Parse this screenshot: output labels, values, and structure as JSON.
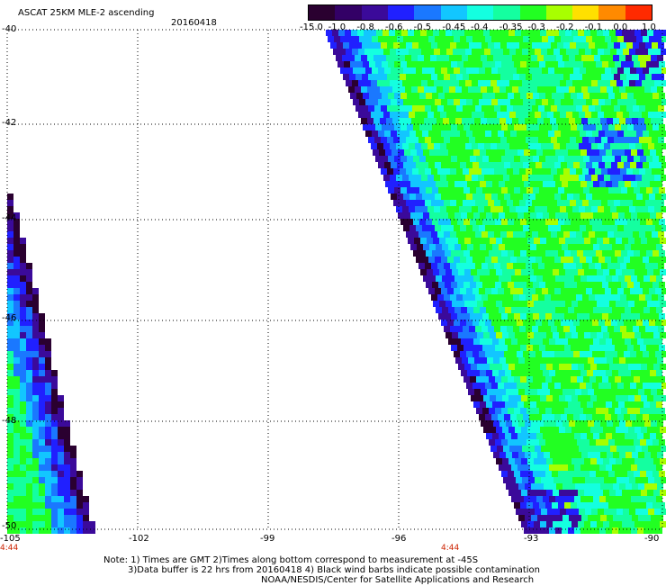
{
  "header": {
    "title": "ASCAT 25KM MLE-2 ascending",
    "date": "20160418"
  },
  "colorbar": {
    "tick_labels": [
      "-15.0",
      "-1.0",
      "-0.8",
      "-0.6",
      "-0.5",
      "-0.45",
      "-0.4",
      "-0.35",
      "-0.3",
      "-0.2",
      "-0.1",
      "0.0",
      "1.0"
    ],
    "colors": [
      "#2a0030",
      "#330066",
      "#3b0a9a",
      "#2020ff",
      "#1a78ff",
      "#12c6ff",
      "#14ffe0",
      "#14ffa0",
      "#22ff22",
      "#a8ff00",
      "#ffe000",
      "#ff8a00",
      "#ff2a00"
    ]
  },
  "map": {
    "lat_labels": [
      "-40",
      "-42",
      "-44",
      "-46",
      "-48",
      "-50"
    ],
    "lon_labels": [
      "-105",
      "-102",
      "-99",
      "-96",
      "-93",
      "-90"
    ],
    "time_labels": [
      "4:44",
      "4:44"
    ]
  },
  "notes": {
    "line1": "Note: 1) Times are GMT 2)Times along bottom correspond to measurement at -45S",
    "line2": "3)Data buffer is 22 hrs from 20160418 4) Black wind barbs indicate possible contamination",
    "line3": "NOAA/NESDIS/Center for Satellite Applications and Research"
  }
}
